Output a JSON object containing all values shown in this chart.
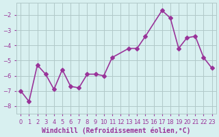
{
  "x": [
    0,
    1,
    2,
    3,
    4,
    5,
    6,
    7,
    8,
    9,
    10,
    11,
    13,
    14,
    15,
    17,
    18,
    19,
    20,
    21,
    22,
    23
  ],
  "y": [
    -7.0,
    -7.7,
    -5.3,
    -5.9,
    -6.9,
    -5.6,
    -6.7,
    -6.8,
    -5.9,
    -5.9,
    -6.0,
    -4.8,
    -4.2,
    -4.2,
    -3.4,
    -1.7,
    -2.2,
    -4.2,
    -3.5,
    -3.4,
    -4.8,
    -5.5
  ],
  "line_color": "#993399",
  "marker": "D",
  "markersize": 3,
  "linewidth": 1.2,
  "xlabel": "Windchill (Refroidissement éolien,°C)",
  "xlabel_fontsize": 7.0,
  "xlabel_color": "#993399",
  "bg_color": "#d8f0f0",
  "grid_color": "#b0c8c8",
  "tick_color": "#993399",
  "ylim": [
    -8.5,
    -1.2
  ],
  "xlim": [
    -0.5,
    23.5
  ],
  "yticks": [
    -8,
    -7,
    -6,
    -5,
    -4,
    -3,
    -2
  ],
  "tick_fontsize": 6.0
}
